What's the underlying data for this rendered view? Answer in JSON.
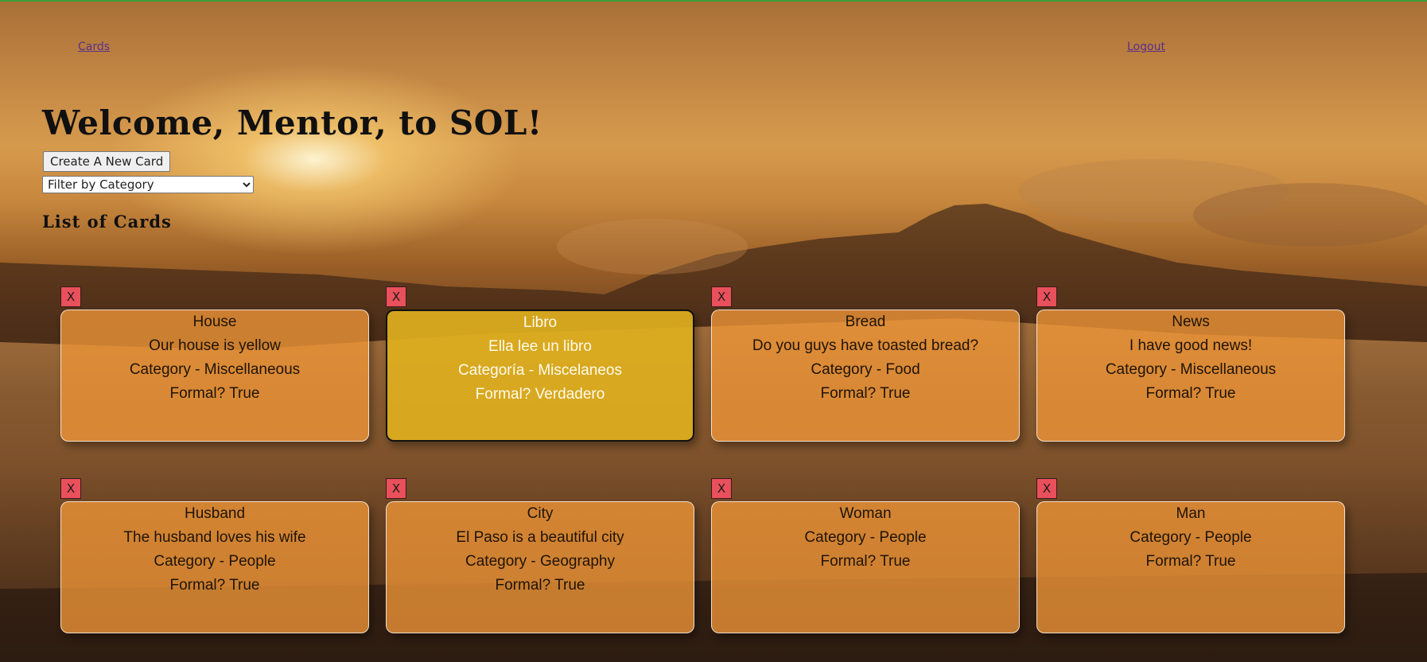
{
  "nav": {
    "cards_label": "Cards",
    "logout_label": "Logout"
  },
  "header": {
    "welcome": "Welcome, Mentor, to SOL!",
    "new_card_button": "Create A New Card",
    "filter_placeholder": "Filter by Category",
    "list_title": "List of Cards"
  },
  "delete_label": "X",
  "cards": [
    {
      "title": "House",
      "sentence": "Our house is yellow",
      "category": "Category - Miscellaneous",
      "formal": "Formal? True"
    },
    {
      "title": "Libro",
      "sentence": "Ella lee un libro",
      "category": "Categoría - Miscelaneos",
      "formal": "Formal? Verdadero"
    },
    {
      "title": "Bread",
      "sentence": "Do you guys have toasted bread?",
      "category": "Category - Food",
      "formal": "Formal? True"
    },
    {
      "title": "News",
      "sentence": "I have good news!",
      "category": "Category - Miscellaneous",
      "formal": "Formal? True"
    },
    {
      "title": "Husband",
      "sentence": "The husband loves his wife",
      "category": "Category - People",
      "formal": "Formal? True"
    },
    {
      "title": "City",
      "sentence": "El Paso is a beautiful city",
      "category": "Category - Geography",
      "formal": "Formal? True"
    },
    {
      "title": "Woman",
      "sentence": "",
      "category": "Category - People",
      "formal": "Formal? True"
    },
    {
      "title": "Man",
      "sentence": "",
      "category": "Category - People",
      "formal": "Formal? True"
    }
  ],
  "colors": {
    "card_bg": "#f09637",
    "card_flipped_bg": "#deaf1e",
    "delete_bg": "#e8505b",
    "link": "#5b2f8a"
  }
}
